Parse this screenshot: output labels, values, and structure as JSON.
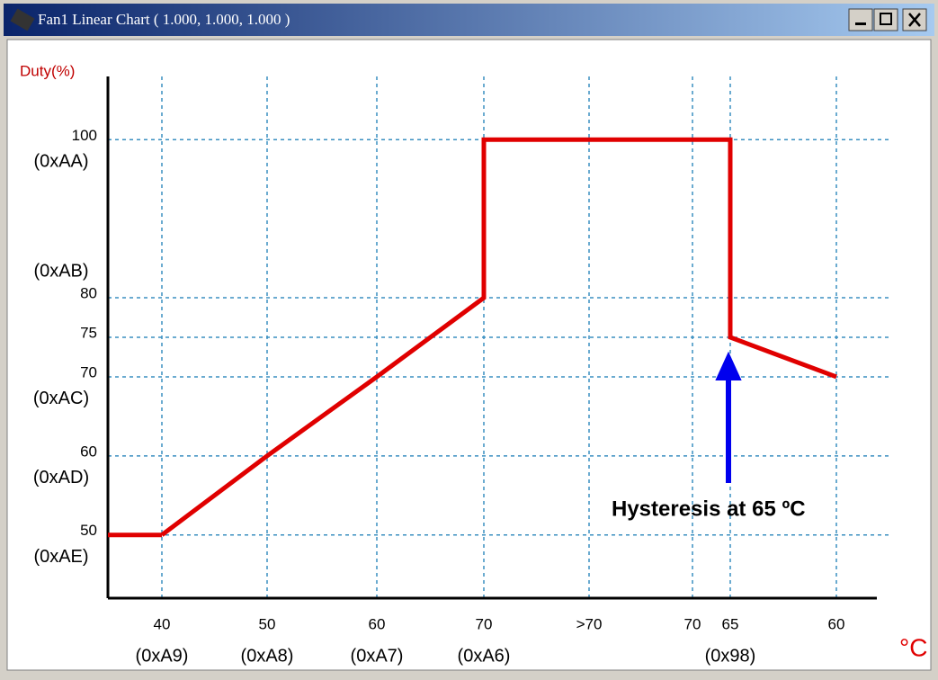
{
  "window_title": "Fan1 Linear Chart ( 1.000, 1.000, 1.000 )",
  "chart_data": {
    "type": "line",
    "y_label": "Duty(%)",
    "x_label": "°C",
    "annotation": "Hysteresis at 65 ºC",
    "categories": [
      "40",
      "50",
      "60",
      "70",
      ">70",
      "70",
      "65",
      "60"
    ],
    "category_codes": [
      "(0xA9)",
      "(0xA8)",
      "(0xA7)",
      "(0xA6)",
      null,
      null,
      "(0x98)",
      null
    ],
    "ylim": [
      42,
      108
    ],
    "yticks": [
      50,
      60,
      70,
      75,
      80,
      100
    ],
    "ytick_codes": [
      "(0xAE)",
      "(0xAD)",
      "(0xAC)",
      null,
      "(0xAB)",
      "(0xAA)"
    ],
    "grid": true,
    "series": [
      {
        "color": "#e00000",
        "x": [
          0,
          1,
          2,
          3,
          3,
          6,
          6,
          7
        ],
        "values": [
          50,
          60,
          70,
          80,
          100,
          100,
          75,
          70
        ]
      }
    ]
  }
}
